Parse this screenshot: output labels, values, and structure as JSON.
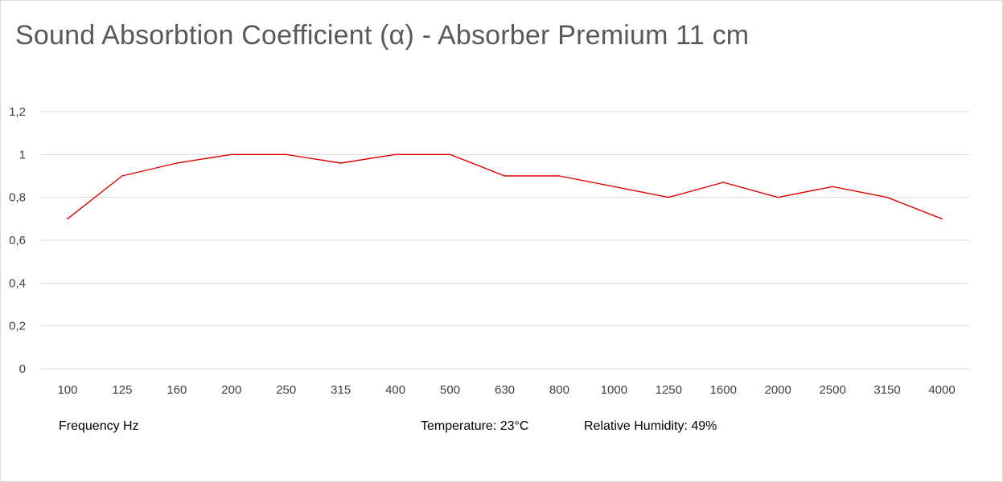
{
  "chart_data": {
    "type": "line",
    "title": "Sound Absorbtion Coefficient (α) - Absorber Premium 11 cm",
    "xlabel": "Frequency Hz",
    "ylabel": "",
    "categories": [
      "100",
      "125",
      "160",
      "200",
      "250",
      "315",
      "400",
      "500",
      "630",
      "800",
      "1000",
      "1250",
      "1600",
      "2000",
      "2500",
      "3150",
      "4000"
    ],
    "series": [
      {
        "values": [
          0.7,
          0.9,
          0.96,
          1.0,
          1.0,
          0.96,
          1.0,
          1.0,
          0.9,
          0.9,
          0.85,
          0.8,
          0.87,
          0.8,
          0.85,
          0.8,
          0.7
        ],
        "color": "#e00000"
      }
    ],
    "ylim": [
      0,
      1.2
    ],
    "yticks": [
      0,
      0.2,
      0.4,
      0.6,
      0.8,
      1,
      1.2
    ],
    "ytick_labels": [
      "0",
      "0,2",
      "0,4",
      "0,6",
      "0,8",
      "1",
      "1,2"
    ],
    "grid": true,
    "legend": "none",
    "gridline_color": "#d9d9d9"
  },
  "annotations": {
    "temperature": "Temperature:  23°C",
    "humidity": "Relative Humidity: 49%"
  }
}
